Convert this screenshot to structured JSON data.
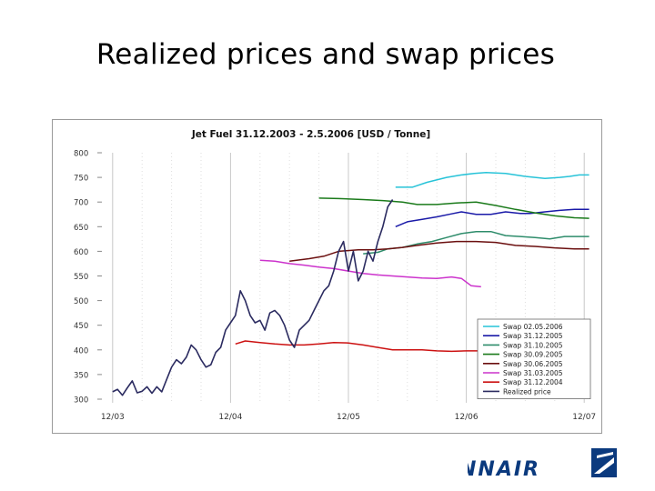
{
  "slide": {
    "title": "Realized prices and swap prices"
  },
  "brand": {
    "name": "FINNAIR",
    "color": "#0b3a7e"
  },
  "chart_data": {
    "type": "line",
    "title": "Jet Fuel 31.12.2003 - 2.5.2006 [USD / Tonne]",
    "xlabel": "",
    "ylabel": "",
    "x_unit": "months since 12/03",
    "xlim": [
      -1,
      49
    ],
    "ylim": [
      300,
      800
    ],
    "y_ticks": [
      300,
      350,
      400,
      450,
      500,
      550,
      600,
      650,
      700,
      750,
      800
    ],
    "x_tick_values": [
      0,
      12,
      24,
      36,
      48
    ],
    "x_tick_labels": [
      "12/03",
      "12/04",
      "12/05",
      "12/06",
      "12/07"
    ],
    "grid": {
      "vertical_major": true,
      "vertical_minor_dotted": true
    },
    "legend_position": "bottom-right",
    "series": [
      {
        "name": "Swap 02.05.2006",
        "color": "#27c3d8",
        "x": [
          28.8,
          30.5,
          32,
          34,
          35.5,
          36.8,
          38,
          40,
          42,
          44,
          45.5,
          46.5,
          47.5,
          48.5
        ],
        "y": [
          730,
          730,
          740,
          750,
          755,
          758,
          760,
          758,
          752,
          748,
          750,
          752,
          755,
          755
        ]
      },
      {
        "name": "Swap 31.12.2005",
        "color": "#1a1aa8",
        "x": [
          28.8,
          30,
          31.5,
          33,
          34.5,
          35.5,
          37,
          38.5,
          40,
          41.5,
          42.5,
          44,
          45.5,
          47,
          48.5
        ],
        "y": [
          650,
          660,
          665,
          670,
          676,
          680,
          675,
          675,
          680,
          677,
          677,
          680,
          683,
          685,
          685
        ]
      },
      {
        "name": "Swap 31.10.2005",
        "color": "#2e8c6b",
        "x": [
          25.5,
          27,
          28,
          29.5,
          31,
          32.5,
          34,
          35.5,
          37,
          38.5,
          40,
          41.5,
          43,
          44.5,
          46,
          48.5
        ],
        "y": [
          595,
          598,
          605,
          608,
          615,
          620,
          628,
          636,
          640,
          640,
          632,
          630,
          628,
          625,
          630,
          630
        ]
      },
      {
        "name": "Swap 30.09.2005",
        "color": "#1a7a1a",
        "x": [
          21,
          23,
          25.5,
          27.5,
          29.5,
          31,
          33,
          35,
          37,
          39,
          41,
          43,
          45,
          47,
          48.5
        ],
        "y": [
          708,
          707,
          705,
          703,
          700,
          695,
          695,
          698,
          700,
          693,
          685,
          678,
          672,
          668,
          667
        ]
      },
      {
        "name": "Swap 30.06.2005",
        "color": "#6b0f0f",
        "x": [
          18,
          20,
          21.5,
          23,
          25,
          26.5,
          28,
          29.5,
          31,
          33,
          35,
          37,
          39,
          41,
          43,
          45,
          47,
          48.5
        ],
        "y": [
          580,
          585,
          590,
          600,
          603,
          603,
          605,
          608,
          612,
          617,
          620,
          620,
          618,
          612,
          610,
          607,
          605,
          605
        ]
      },
      {
        "name": "Swap 31.03.2005",
        "color": "#cc33cc",
        "x": [
          15,
          16.5,
          18,
          19.5,
          21,
          22.5,
          24,
          25.5,
          27,
          28.5,
          30,
          31.5,
          33,
          34.5,
          35.5,
          36.5,
          37.5
        ],
        "y": [
          582,
          580,
          575,
          572,
          568,
          565,
          560,
          555,
          552,
          550,
          548,
          546,
          545,
          548,
          545,
          530,
          528
        ]
      },
      {
        "name": "Swap 31.12.2004",
        "color": "#cc1111",
        "x": [
          12.5,
          13.5,
          15,
          16.5,
          18,
          19.5,
          21,
          22.5,
          24,
          25.5,
          27,
          28.5,
          30,
          31.5,
          33,
          34.5,
          36,
          37.5
        ],
        "y": [
          412,
          418,
          415,
          412,
          410,
          410,
          412,
          415,
          414,
          410,
          405,
          400,
          400,
          400,
          398,
          397,
          398,
          398
        ]
      },
      {
        "name": "Realized price",
        "color": "#2b2b60",
        "x": [
          0,
          0.5,
          1,
          1.5,
          2,
          2.5,
          3,
          3.5,
          4,
          4.5,
          5,
          5.5,
          6,
          6.5,
          7,
          7.5,
          8,
          8.5,
          9,
          9.5,
          10,
          10.5,
          11,
          11.5,
          12,
          12.5,
          13,
          13.5,
          14,
          14.5,
          15,
          15.5,
          16,
          16.5,
          17,
          17.5,
          18,
          18.5,
          19,
          19.5,
          20,
          20.5,
          21,
          21.5,
          22,
          22.5,
          23,
          23.5,
          24,
          24.5,
          25,
          25.5,
          26,
          26.5,
          27,
          27.5,
          28,
          28.5
        ],
        "y": [
          315,
          320,
          308,
          323,
          337,
          313,
          316,
          325,
          312,
          325,
          315,
          340,
          365,
          380,
          372,
          385,
          410,
          400,
          380,
          365,
          370,
          395,
          405,
          440,
          455,
          470,
          520,
          500,
          470,
          455,
          460,
          440,
          475,
          480,
          470,
          450,
          420,
          405,
          440,
          450,
          460,
          480,
          500,
          520,
          530,
          560,
          600,
          620,
          560,
          600,
          540,
          560,
          600,
          580,
          620,
          650,
          690,
          705
        ],
        "note": "ends 2.5.2006 near 705 USD/t"
      }
    ]
  }
}
